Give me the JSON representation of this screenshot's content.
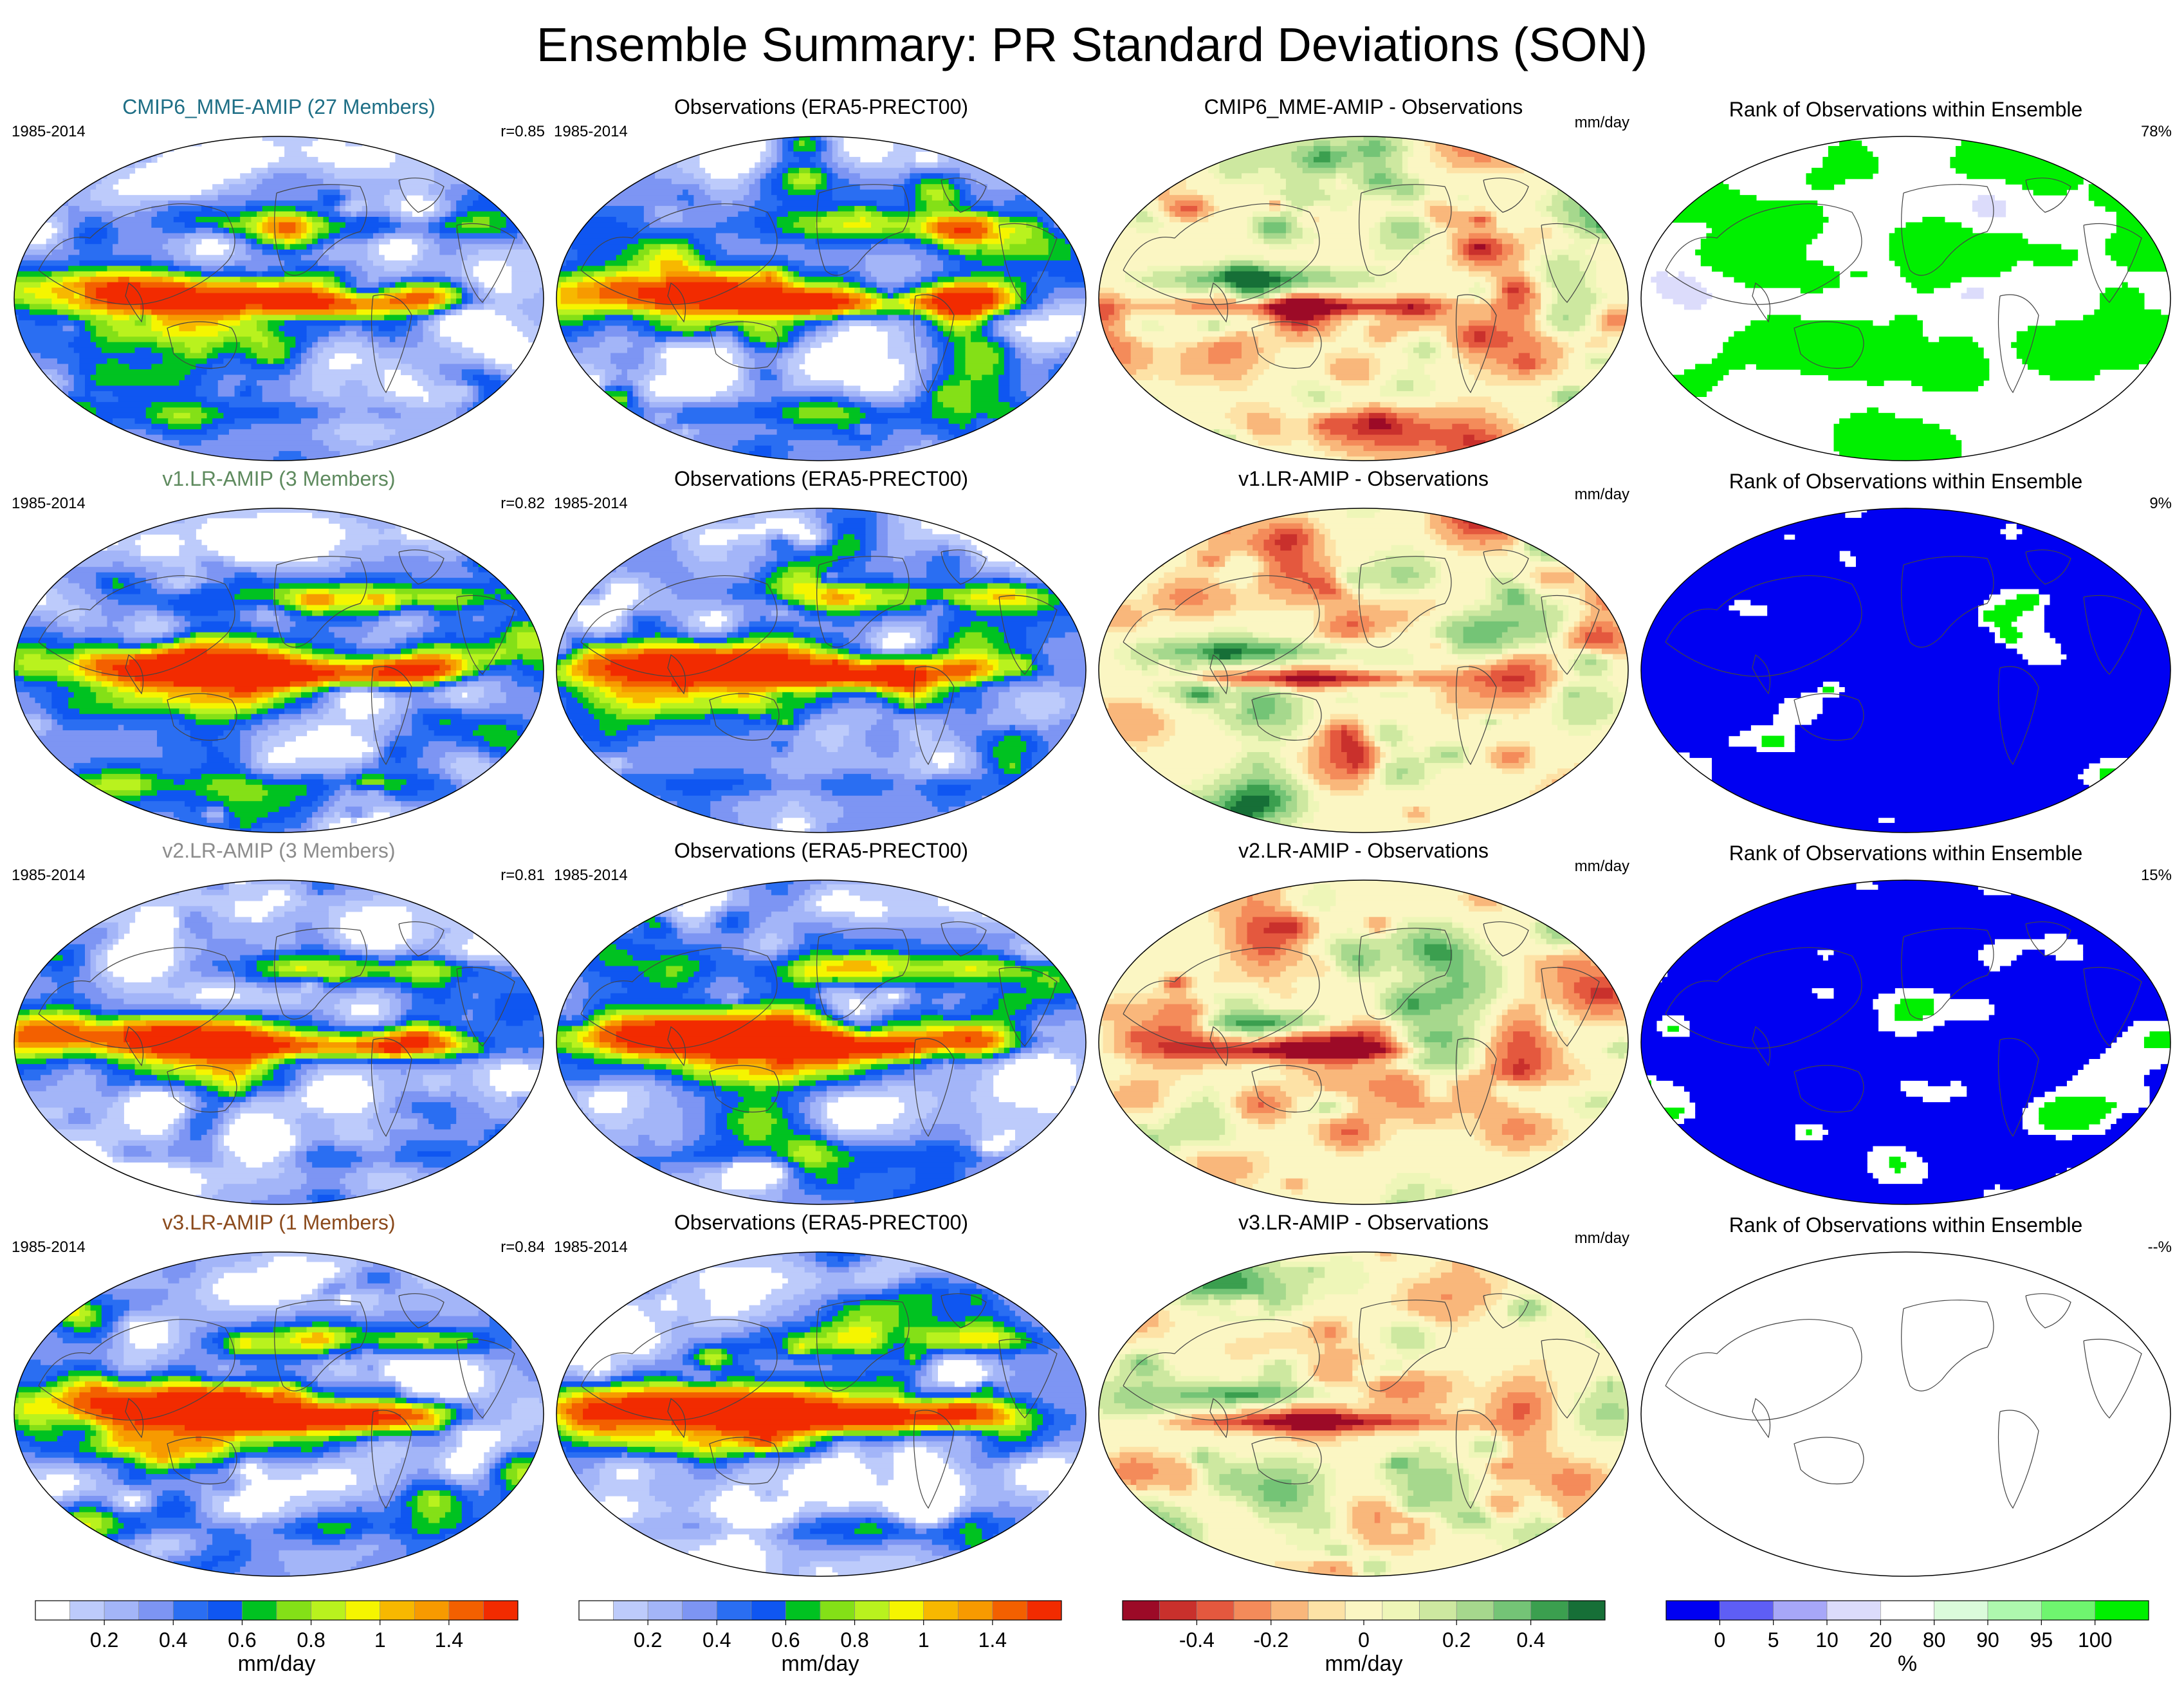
{
  "title": "Ensemble Summary: PR Standard Deviations (SON)",
  "rows": [
    {
      "model_title": "CMIP6_MME-AMIP (27 Members)",
      "model_color": "#1f6f86",
      "period": "1985-2014",
      "corr": "r=0.85",
      "obs_title": "Observations (ERA5-PRECT00)",
      "obs_period": "1985-2014",
      "diff_title": "CMIP6_MME-AMIP - Observations",
      "diff_unit": "mm/day",
      "rank_title": "Rank of Observations within Ensemble",
      "rank_pct": "78%"
    },
    {
      "model_title": "v1.LR-AMIP (3 Members)",
      "model_color": "#5e8a5e",
      "period": "1985-2014",
      "corr": "r=0.82",
      "obs_title": "Observations (ERA5-PRECT00)",
      "obs_period": "1985-2014",
      "diff_title": "v1.LR-AMIP - Observations",
      "diff_unit": "mm/day",
      "rank_title": "Rank of Observations within Ensemble",
      "rank_pct": "9%"
    },
    {
      "model_title": "v2.LR-AMIP (3 Members)",
      "model_color": "#8c8c8c",
      "period": "1985-2014",
      "corr": "r=0.81",
      "obs_title": "Observations (ERA5-PRECT00)",
      "obs_period": "1985-2014",
      "diff_title": "v2.LR-AMIP - Observations",
      "diff_unit": "mm/day",
      "rank_title": "Rank of Observations within Ensemble",
      "rank_pct": "15%"
    },
    {
      "model_title": "v3.LR-AMIP (1 Members)",
      "model_color": "#8b4a1c",
      "period": "1985-2014",
      "corr": "r=0.84",
      "obs_title": "Observations (ERA5-PRECT00)",
      "obs_period": "1985-2014",
      "diff_title": "v3.LR-AMIP - Observations",
      "diff_unit": "mm/day",
      "rank_title": "Rank of Observations within Ensemble",
      "rank_pct": "--%"
    }
  ],
  "colorbars": [
    {
      "unit": "mm/day",
      "colors": [
        "#ffffff",
        "#bdcbfb",
        "#a3b5f8",
        "#7d95f3",
        "#2a6ef2",
        "#0f56f1",
        "#00c221",
        "#84e017",
        "#b9f21e",
        "#f5f500",
        "#f7b800",
        "#f79a00",
        "#f36000",
        "#f22b00"
      ],
      "ticks": [
        "0.2",
        "0.4",
        "0.6",
        "0.8",
        "1",
        "1.4"
      ],
      "tick_bounds": [
        2,
        4,
        6,
        8,
        10,
        12
      ]
    },
    {
      "unit": "mm/day",
      "colors": [
        "#ffffff",
        "#bdcbfb",
        "#a3b5f8",
        "#7d95f3",
        "#2a6ef2",
        "#0f56f1",
        "#00c221",
        "#84e017",
        "#b9f21e",
        "#f5f500",
        "#f7b800",
        "#f79a00",
        "#f36000",
        "#f22b00"
      ],
      "ticks": [
        "0.2",
        "0.4",
        "0.6",
        "0.8",
        "1",
        "1.4"
      ],
      "tick_bounds": [
        2,
        4,
        6,
        8,
        10,
        12
      ]
    },
    {
      "unit": "mm/day",
      "colors": [
        "#9c0a27",
        "#c9302c",
        "#e4583e",
        "#f48b5a",
        "#f9b77b",
        "#fde2a6",
        "#fbf6c3",
        "#eef6b8",
        "#cde8a0",
        "#a6d88d",
        "#74c476",
        "#3b9f4f",
        "#166f37"
      ],
      "ticks": [
        "-0.4",
        "-0.2",
        "0",
        "0.2",
        "0.4"
      ],
      "tick_bounds": [
        2,
        4,
        6.5,
        9,
        11
      ]
    },
    {
      "unit": "%",
      "colors": [
        "#0000f2",
        "#5e5ef5",
        "#a7a7f8",
        "#dcdcfb",
        "#ffffff",
        "#dbfbdb",
        "#aef8ae",
        "#6ff56f",
        "#00f000"
      ],
      "ticks": [
        "0",
        "5",
        "10",
        "20",
        "80",
        "90",
        "95",
        "100"
      ],
      "tick_bounds": [
        1,
        2,
        3,
        4,
        5,
        6,
        7,
        8
      ]
    }
  ]
}
